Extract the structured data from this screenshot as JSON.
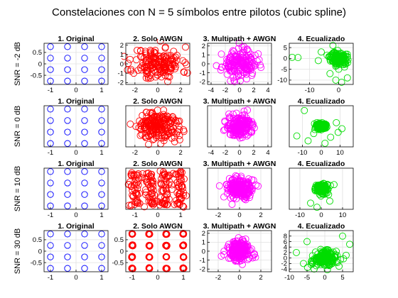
{
  "suptitle": "Constelaciones con N = 5 símbolos entre pilotos (cubic spline)",
  "colors": {
    "original": "#0000ff",
    "awgn": "#ff0000",
    "multipath": "#ff00ff",
    "equalized": "#00dd00",
    "grid": "#e0e0e0",
    "axis": "#000000"
  },
  "chart_data": [
    {
      "panel": "r1c1",
      "type": "scatter",
      "title": "1. Original",
      "ylabel": "SNR = -2 dB",
      "xlim": [
        -1.25,
        1.25
      ],
      "ylim": [
        -0.9,
        0.9
      ],
      "xticks": [
        -1,
        0,
        1
      ],
      "xtick_labels": [
        "-1",
        "0",
        "1"
      ],
      "yticks": [
        -0.5,
        0,
        0.5
      ],
      "ytick_labels": [
        "-0.5",
        "0",
        "0.5"
      ],
      "x": [
        -1,
        -0.333,
        0.333,
        1,
        -1,
        -0.333,
        0.333,
        1,
        -1,
        -0.333,
        0.333,
        1,
        -1,
        -0.333,
        0.333,
        1
      ],
      "y": [
        0.75,
        0.75,
        0.75,
        0.75,
        0.25,
        0.25,
        0.25,
        0.25,
        -0.25,
        -0.25,
        -0.25,
        -0.25,
        -0.75,
        -0.75,
        -0.75,
        -0.75
      ],
      "grid": true
    },
    {
      "panel": "r1c2",
      "type": "scatter",
      "title": "2. Solo AWGN",
      "xlim": [
        -2.8,
        2.8
      ],
      "ylim": [
        -2.2,
        2.2
      ],
      "xticks": [
        -2,
        0,
        2
      ],
      "xtick_labels": [
        "-2",
        "0",
        "2"
      ],
      "yticks": [
        -2,
        -1,
        0,
        1,
        2
      ],
      "ytick_labels": [
        "-2",
        "-1",
        "0",
        "1",
        "2"
      ],
      "scatter_model": {
        "count": 170,
        "center": [
          0,
          0
        ],
        "spread": [
          1.05,
          0.9
        ],
        "seed": 11
      },
      "grid": true
    },
    {
      "panel": "r1c3",
      "type": "scatter",
      "title": "3. Multipath + AWGN",
      "xlim": [
        -4.5,
        4.5
      ],
      "ylim": [
        -2.3,
        2.3
      ],
      "xticks": [
        -4,
        -2,
        0,
        2,
        4
      ],
      "xtick_labels": [
        "-4",
        "-2",
        "0",
        "2",
        "4"
      ],
      "yticks": [
        -2,
        -1,
        0,
        1,
        2
      ],
      "ytick_labels": [
        "-2",
        "-1",
        "0",
        "1",
        "2"
      ],
      "scatter_model": {
        "count": 160,
        "center": [
          0,
          0
        ],
        "spread": [
          1.2,
          0.75
        ],
        "seed": 23
      },
      "grid": true
    },
    {
      "panel": "r1c4",
      "type": "scatter",
      "title": "4. Ecualizado",
      "xlim": [
        -17,
        5
      ],
      "ylim": [
        -12,
        7
      ],
      "xticks": [
        -10,
        0
      ],
      "xtick_labels": [
        "-10",
        "0"
      ],
      "yticks": [
        -10,
        -5,
        0,
        5
      ],
      "ytick_labels": [
        "-10",
        "-5",
        "0",
        "5"
      ],
      "scatter_model": {
        "count": 140,
        "center": [
          0,
          0
        ],
        "spread": [
          1.4,
          1.5
        ],
        "seed": 37
      },
      "outliers": {
        "x": [
          -16,
          -14,
          -6,
          -7,
          -3,
          -1,
          1,
          3,
          -2,
          2,
          -4,
          0
        ],
        "y": [
          0.5,
          0.4,
          3,
          -1,
          -7,
          -10,
          -11,
          -9,
          6,
          -4,
          1.5,
          -5
        ]
      },
      "grid": true
    },
    {
      "panel": "r2c1",
      "type": "scatter",
      "title": "1. Original",
      "ylabel": "SNR = 0 dB",
      "xlim": [
        -1.25,
        1.25
      ],
      "ylim": [
        -0.9,
        0.9
      ],
      "xticks": [
        -1,
        0,
        1
      ],
      "xtick_labels": [
        "-1",
        "0",
        "1"
      ],
      "yticks": [],
      "ytick_labels": [],
      "x": [
        -1,
        -0.333,
        0.333,
        1,
        -1,
        -0.333,
        0.333,
        1,
        -1,
        -0.333,
        0.333,
        1,
        -1,
        -0.333,
        0.333,
        1
      ],
      "y": [
        0.75,
        0.75,
        0.75,
        0.75,
        0.25,
        0.25,
        0.25,
        0.25,
        -0.25,
        -0.25,
        -0.25,
        -0.25,
        -0.75,
        -0.75,
        -0.75,
        -0.75
      ],
      "grid": true
    },
    {
      "panel": "r2c2",
      "type": "scatter",
      "title": "2. Solo AWGN",
      "xlim": [
        -2.8,
        2.8
      ],
      "ylim": [
        -2.2,
        2.2
      ],
      "xticks": [
        -2,
        0,
        2
      ],
      "xtick_labels": [
        "-2",
        "0",
        "2"
      ],
      "yticks": [],
      "ytick_labels": [],
      "scatter_model": {
        "count": 200,
        "center": [
          0,
          0
        ],
        "spread": [
          0.95,
          0.8
        ],
        "seed": 51
      },
      "grid": true
    },
    {
      "panel": "r2c3",
      "type": "scatter",
      "title": "3. Multipath + AWGN",
      "xlim": [
        -4.5,
        4.5
      ],
      "ylim": [
        -2.3,
        2.3
      ],
      "xticks": [
        -4,
        -2,
        0,
        2,
        4
      ],
      "xtick_labels": [
        "-4",
        "-2",
        "0",
        "2",
        "4"
      ],
      "yticks": [],
      "ytick_labels": [],
      "scatter_model": {
        "count": 200,
        "center": [
          0,
          0
        ],
        "spread": [
          0.8,
          0.6
        ],
        "seed": 63
      },
      "grid": true
    },
    {
      "panel": "r2c4",
      "type": "scatter",
      "title": "4. Ecualizado",
      "xlim": [
        -17,
        17
      ],
      "ylim": [
        -17,
        17
      ],
      "xticks": [
        -10,
        0,
        10
      ],
      "xtick_labels": [
        "-10",
        "0",
        "10"
      ],
      "yticks": [],
      "ytick_labels": [],
      "scatter_model": {
        "count": 170,
        "center": [
          0,
          0
        ],
        "spread": [
          1.6,
          1.3
        ],
        "seed": 71
      },
      "outliers": {
        "x": [
          -9,
          -13,
          -7,
          9,
          11,
          5,
          8,
          2,
          -4
        ],
        "y": [
          13,
          -8,
          -12,
          -5,
          -2,
          -9,
          3,
          -14,
          -6
        ]
      },
      "grid": true
    },
    {
      "panel": "r3c1",
      "type": "scatter",
      "title": "1. Original",
      "ylabel": "SNR = 10 dB",
      "xlim": [
        -1.25,
        1.25
      ],
      "ylim": [
        -0.9,
        0.9
      ],
      "xticks": [
        -1,
        0,
        1
      ],
      "xtick_labels": [
        "-1",
        "0",
        "1"
      ],
      "yticks": [],
      "ytick_labels": [],
      "x": [
        -1,
        -0.333,
        0.333,
        1,
        -1,
        -0.333,
        0.333,
        1,
        -1,
        -0.333,
        0.333,
        1,
        -1,
        -0.333,
        0.333,
        1
      ],
      "y": [
        0.75,
        0.75,
        0.75,
        0.75,
        0.25,
        0.25,
        0.25,
        0.25,
        -0.25,
        -0.25,
        -0.25,
        -0.25,
        -0.75,
        -0.75,
        -0.75,
        -0.75
      ],
      "grid": true
    },
    {
      "panel": "r3c2",
      "type": "scatter",
      "title": "2. Solo AWGN",
      "xlim": [
        -1.4,
        1.4
      ],
      "ylim": [
        -1.1,
        1.1
      ],
      "xticks": [
        -1,
        0,
        1
      ],
      "xtick_labels": [
        "-1",
        "0",
        "1"
      ],
      "yticks": [],
      "ytick_labels": [],
      "cluster_model": {
        "per_point": 12,
        "spread": 0.13,
        "seed": 81
      },
      "grid": true
    },
    {
      "panel": "r3c3",
      "type": "scatter",
      "title": "3. Multipath + AWGN",
      "xlim": [
        -3,
        3
      ],
      "ylim": [
        -2,
        2
      ],
      "xticks": [
        -2,
        0,
        2
      ],
      "xtick_labels": [
        "-2",
        "0",
        "2"
      ],
      "yticks": [],
      "ytick_labels": [],
      "scatter_model": {
        "count": 200,
        "center": [
          0,
          0
        ],
        "spread": [
          0.6,
          0.5
        ],
        "seed": 91
      },
      "grid": true
    },
    {
      "panel": "r3c4",
      "type": "scatter",
      "title": "4. Ecualizado",
      "xlim": [
        -15,
        15
      ],
      "ylim": [
        -10,
        10
      ],
      "xticks": [
        -10,
        0,
        10
      ],
      "xtick_labels": [
        "-10",
        "0",
        "10"
      ],
      "yticks": [],
      "ytick_labels": [],
      "scatter_model": {
        "count": 170,
        "center": [
          0,
          0
        ],
        "spread": [
          1.4,
          1.2
        ],
        "seed": 97
      },
      "outliers": {
        "x": [
          -5,
          4,
          6,
          -2
        ],
        "y": [
          -7,
          -6,
          2,
          -9
        ]
      },
      "grid": true
    },
    {
      "panel": "r4c1",
      "type": "scatter",
      "title": "1. Original",
      "ylabel": "SNR = 30 dB",
      "xlim": [
        -1.25,
        1.25
      ],
      "ylim": [
        -0.9,
        0.9
      ],
      "xticks": [
        -1,
        0,
        1
      ],
      "xtick_labels": [
        "-1",
        "0",
        "1"
      ],
      "yticks": [
        -0.5,
        0,
        0.5
      ],
      "ytick_labels": [
        "-0.5",
        "0",
        "0.5"
      ],
      "x": [
        -1,
        -0.333,
        0.333,
        1,
        -1,
        -0.333,
        0.333,
        1,
        -1,
        -0.333,
        0.333,
        1,
        -1,
        -0.333,
        0.333,
        1
      ],
      "y": [
        0.75,
        0.75,
        0.75,
        0.75,
        0.25,
        0.25,
        0.25,
        0.25,
        -0.25,
        -0.25,
        -0.25,
        -0.25,
        -0.75,
        -0.75,
        -0.75,
        -0.75
      ],
      "grid": true
    },
    {
      "panel": "r4c2",
      "type": "scatter",
      "title": "2. Solo AWGN",
      "xlim": [
        -1.25,
        1.25
      ],
      "ylim": [
        -0.9,
        0.9
      ],
      "xticks": [
        -1,
        0,
        1
      ],
      "xtick_labels": [
        "-1",
        "0",
        "1"
      ],
      "yticks": [
        -0.5,
        0,
        0.5
      ],
      "ytick_labels": [
        "-0.5",
        "0",
        "0.5"
      ],
      "cluster_model": {
        "per_point": 5,
        "spread": 0.012,
        "seed": 101
      },
      "grid": true
    },
    {
      "panel": "r4c3",
      "type": "scatter",
      "title": "3. Multipath + AWGN",
      "xlim": [
        -3,
        3
      ],
      "ylim": [
        -2.3,
        2.3
      ],
      "xticks": [
        -2,
        0,
        2
      ],
      "xtick_labels": [
        "-2",
        "0",
        "2"
      ],
      "yticks": [
        -2,
        -1,
        0,
        1,
        2
      ],
      "ytick_labels": [
        "-2",
        "-1",
        "0",
        "1",
        "2"
      ],
      "scatter_model": {
        "count": 200,
        "center": [
          0,
          0
        ],
        "spread": [
          0.6,
          0.55
        ],
        "seed": 111
      },
      "grid": true
    },
    {
      "panel": "r4c4",
      "type": "scatter",
      "title": "4. Ecualizado",
      "xlim": [
        -10,
        8
      ],
      "ylim": [
        -5,
        10
      ],
      "xticks": [
        -10,
        -5,
        0,
        5
      ],
      "xtick_labels": [
        "-10",
        "-5",
        "0",
        "5"
      ],
      "yticks": [
        -4,
        -2,
        0,
        2,
        4,
        6,
        8
      ],
      "ytick_labels": [
        "-4",
        "-2",
        "0",
        "2",
        "4",
        "6",
        "8"
      ],
      "scatter_model": {
        "count": 170,
        "center": [
          0,
          0
        ],
        "spread": [
          1.6,
          1.4
        ],
        "seed": 121
      },
      "outliers": {
        "x": [
          5,
          7,
          -5,
          -8,
          4,
          6,
          -3,
          -6
        ],
        "y": [
          8,
          5,
          6,
          2,
          -3,
          1,
          -4,
          -2
        ],
        "clamped": true
      },
      "grid": true
    }
  ]
}
